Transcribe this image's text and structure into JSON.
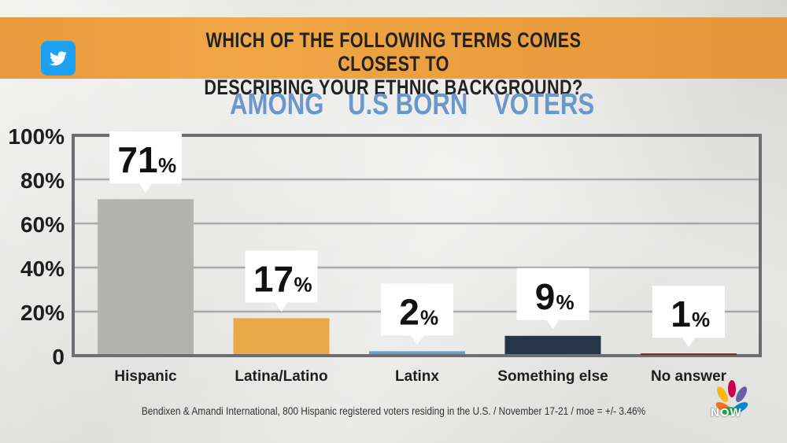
{
  "banner": {
    "line1": "WHICH OF THE FOLLOWING TERMS COMES CLOSEST TO",
    "line2": "DESCRIBING YOUR ETHNIC BACKGROUND?"
  },
  "subtitle": {
    "word1": "AMONG",
    "word2": "U.S BORN",
    "word3": "VOTERS"
  },
  "source": "Bendixen & Amandi International, 800 Hispanic registered voters residing in the U.S. / November 17-21 / moe = +/- 3.46%",
  "logo": {
    "text": "NOW"
  },
  "colors": {
    "banner": "#ec9f40",
    "subtitle": "#6b97cc",
    "frame": "#6e6e72"
  },
  "chart_data": {
    "type": "bar",
    "title": "WHICH OF THE FOLLOWING TERMS COMES CLOSEST TO DESCRIBING YOUR ETHNIC BACKGROUND?",
    "subtitle": "AMONG U.S BORN VOTERS",
    "categories": [
      "Hispanic",
      "Latina/Latino",
      "Latinx",
      "Something else",
      "No answer"
    ],
    "values": [
      71,
      17,
      2,
      9,
      1
    ],
    "value_labels": [
      "71",
      "17",
      "2",
      "9",
      "1"
    ],
    "unit": "%",
    "bar_colors": [
      "#b3b4b0",
      "#eaa746",
      "#6a9ed3",
      "#273548",
      "#7a1f22"
    ],
    "yticks": [
      "100%",
      "80%",
      "60%",
      "40%",
      "20%",
      "0"
    ],
    "ytick_values": [
      100,
      80,
      60,
      40,
      20,
      0
    ],
    "ylim": [
      0,
      100
    ],
    "grid": true
  }
}
